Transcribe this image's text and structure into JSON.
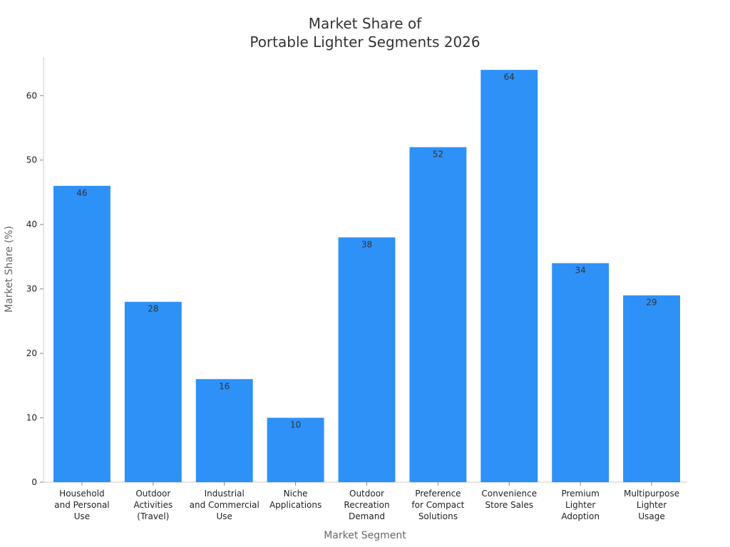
{
  "chart_data": {
    "type": "bar",
    "title": [
      "Market Share of",
      "Portable Lighter Segments 2026"
    ],
    "xlabel": "Market Segment",
    "ylabel": "Market Share (%)",
    "ylim": [
      0,
      66
    ],
    "yticks": [
      0,
      10,
      20,
      30,
      40,
      50,
      60
    ],
    "categories": [
      [
        "Household",
        "and Personal",
        "Use"
      ],
      [
        "Outdoor",
        "Activities",
        "(Travel)"
      ],
      [
        "Industrial",
        "and Commercial",
        "Use"
      ],
      [
        "Niche",
        "Applications"
      ],
      [
        "Outdoor",
        "Recreation",
        "Demand"
      ],
      [
        "Preference",
        "for Compact",
        "Solutions"
      ],
      [
        "Convenience",
        "Store Sales"
      ],
      [
        "Premium",
        "Lighter",
        "Adoption"
      ],
      [
        "Multipurpose",
        "Lighter",
        "Usage"
      ]
    ],
    "values": [
      46,
      28,
      16,
      10,
      38,
      52,
      64,
      34,
      29
    ],
    "bar_color": "#2E91F8",
    "grid": false,
    "legend": "none"
  }
}
